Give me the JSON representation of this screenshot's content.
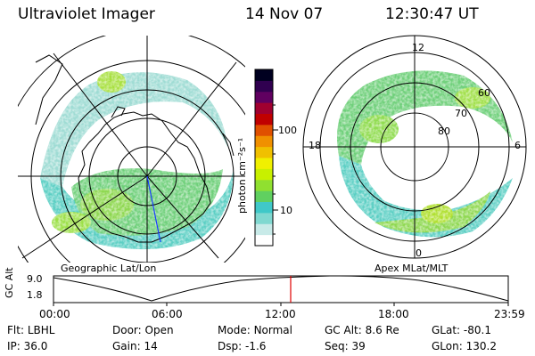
{
  "header": {
    "instrument": "Ultraviolet Imager",
    "date": "14 Nov 07",
    "time": "12:30:47 UT"
  },
  "left_panel": {
    "caption": "Geographic Lat/Lon"
  },
  "right_panel": {
    "caption": "Apex MLat/MLT",
    "mlt_labels": [
      "12",
      "18",
      "6",
      "0"
    ],
    "mlat_labels": [
      "60",
      "70",
      "80"
    ]
  },
  "colorbar": {
    "unit_label": "photon cm⁻²s⁻¹",
    "scale": "log",
    "tick_labels": [
      "100",
      "10"
    ],
    "colors": [
      "#ffffff",
      "#c8eae8",
      "#80d8d0",
      "#40c8c8",
      "#60d060",
      "#90e030",
      "#c8f000",
      "#f0f000",
      "#f0c000",
      "#f09000",
      "#e05000",
      "#c00000",
      "#a00030",
      "#600060",
      "#300050",
      "#000020"
    ]
  },
  "altitude_strip": {
    "axis_label": "GC Alt",
    "y_ticks": [
      "9.0",
      "1.8"
    ],
    "x_ticks": [
      "00:00",
      "06:00",
      "12:00",
      "18:00",
      "23:59"
    ],
    "marker_time": "12:30",
    "marker_color": "#e00000"
  },
  "info": {
    "row1": [
      {
        "label": "Flt:",
        "value": "LBHL"
      },
      {
        "label": "Door:",
        "value": "Open"
      },
      {
        "label": "Mode:",
        "value": "Normal"
      },
      {
        "label": "GC Alt:",
        "value": "8.6 Re"
      },
      {
        "label": "GLat:",
        "value": "-80.1"
      }
    ],
    "row2": [
      {
        "label": "IP:",
        "value": "36.0"
      },
      {
        "label": "Gain:",
        "value": "14"
      },
      {
        "label": "Dsp:",
        "value": "-1.6"
      },
      {
        "label": "Seq:",
        "value": "39"
      },
      {
        "label": "GLon:",
        "value": "130.2"
      }
    ]
  }
}
